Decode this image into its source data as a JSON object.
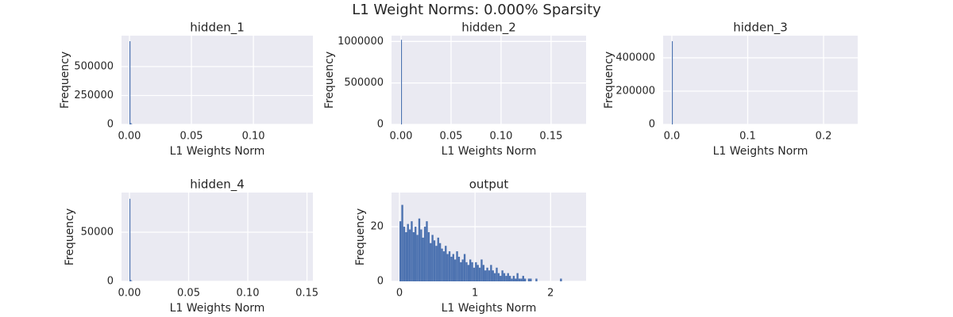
{
  "title": "L1 Weight Norms: 0.000% Sparsity",
  "chart_data": [
    {
      "type": "histogram",
      "title": "hidden_1",
      "x_label": "L1 Weights Norm",
      "y_label": "Frequency",
      "bins": [
        0,
        0.0008,
        0.0016,
        0.0024
      ],
      "counts": [
        719000,
        12000,
        2000
      ],
      "color": "#4c72b0",
      "xlim": [
        -0.0064,
        0.148
      ],
      "ylim": [
        0,
        767000
      ],
      "xticks": [
        {
          "value": 0,
          "label": "0.00"
        },
        {
          "value": 0.05,
          "label": "0.05"
        },
        {
          "value": 0.1,
          "label": "0.10"
        }
      ],
      "yticks": [
        0,
        250000,
        500000
      ],
      "grid": true
    },
    {
      "type": "histogram",
      "title": "hidden_2",
      "x_label": "L1 Weights Norm",
      "y_label": "Frequency",
      "bins": [
        0,
        0.0009
      ],
      "counts": [
        1020000
      ],
      "color": "#4c72b0",
      "xlim": [
        -0.0095,
        0.185
      ],
      "ylim": [
        0,
        1070000
      ],
      "xticks": [
        {
          "value": 0,
          "label": "0.00"
        },
        {
          "value": 0.05,
          "label": "0.05"
        },
        {
          "value": 0.1,
          "label": "0.10"
        },
        {
          "value": 0.15,
          "label": "0.15"
        }
      ],
      "yticks": [
        0,
        500000,
        1000000
      ],
      "grid": true
    },
    {
      "type": "histogram",
      "title": "hidden_3",
      "x_label": "L1 Weights Norm",
      "y_label": "Frequency",
      "bins": [
        0,
        0.0012
      ],
      "counts": [
        500000
      ],
      "color": "#4c72b0",
      "xlim": [
        -0.0115,
        0.245
      ],
      "ylim": [
        0,
        533000
      ],
      "xticks": [
        {
          "value": 0,
          "label": "0.0"
        },
        {
          "value": 0.1,
          "label": "0.1"
        },
        {
          "value": 0.2,
          "label": "0.2"
        }
      ],
      "yticks": [
        0,
        200000,
        400000
      ],
      "grid": true
    },
    {
      "type": "histogram",
      "title": "hidden_4",
      "x_label": "L1 Weights Norm",
      "y_label": "Frequency",
      "bins": [
        0,
        0.0008,
        0.0016,
        0.0024
      ],
      "counts": [
        84000,
        1500,
        300
      ],
      "color": "#4c72b0",
      "xlim": [
        -0.0067,
        0.155
      ],
      "ylim": [
        0,
        90300
      ],
      "xticks": [
        {
          "value": 0,
          "label": "0.00"
        },
        {
          "value": 0.05,
          "label": "0.05"
        },
        {
          "value": 0.1,
          "label": "0.10"
        },
        {
          "value": 0.15,
          "label": "0.15"
        }
      ],
      "yticks": [
        0,
        50000
      ],
      "grid": true
    },
    {
      "type": "histogram",
      "title": "output",
      "x_label": "L1 Weights Norm",
      "y_label": "Frequency",
      "bins": [
        0,
        0.025,
        0.05,
        0.075,
        0.1,
        0.125,
        0.15,
        0.175,
        0.2,
        0.225,
        0.25,
        0.275,
        0.3,
        0.325,
        0.35,
        0.375,
        0.4,
        0.425,
        0.45,
        0.475,
        0.5,
        0.525,
        0.55,
        0.575,
        0.6,
        0.625,
        0.65,
        0.675,
        0.7,
        0.725,
        0.75,
        0.775,
        0.8,
        0.825,
        0.85,
        0.875,
        0.9,
        0.925,
        0.95,
        0.975,
        1.0,
        1.025,
        1.05,
        1.075,
        1.1,
        1.125,
        1.15,
        1.175,
        1.2,
        1.225,
        1.25,
        1.275,
        1.3,
        1.325,
        1.35,
        1.375,
        1.4,
        1.425,
        1.45,
        1.475,
        1.5,
        1.525,
        1.55,
        1.575,
        1.6,
        1.625,
        1.65,
        1.675,
        1.7,
        1.725,
        1.75,
        1.775,
        1.8,
        1.825,
        1.85,
        1.875,
        1.9,
        1.925,
        1.95,
        1.975,
        2.0,
        2.025,
        2.05,
        2.075,
        2.1,
        2.125,
        2.15,
        2.175,
        2.2
      ],
      "counts": [
        22,
        28,
        20,
        18,
        21,
        19,
        22,
        18,
        20,
        17,
        23,
        19,
        16,
        20,
        22,
        18,
        14,
        17,
        15,
        13,
        16,
        14,
        12,
        11,
        13,
        10,
        11,
        9,
        10,
        8,
        11,
        9,
        7,
        8,
        10,
        7,
        6,
        8,
        7,
        5,
        7,
        6,
        5,
        8,
        6,
        4,
        5,
        4,
        6,
        4,
        3,
        5,
        3,
        2,
        4,
        3,
        2,
        3,
        2,
        1,
        2,
        1,
        3,
        1,
        1,
        2,
        1,
        0,
        1,
        1,
        0,
        0,
        1,
        0,
        0,
        0,
        0,
        0,
        0,
        0,
        0,
        0,
        0,
        0,
        0,
        1,
        0,
        0
      ],
      "color": "#4c72b0",
      "xlim": [
        -0.105,
        2.47
      ],
      "ylim": [
        0,
        32.5
      ],
      "xticks": [
        0,
        1,
        2
      ],
      "yticks": [
        0,
        20
      ],
      "grid": true
    }
  ]
}
